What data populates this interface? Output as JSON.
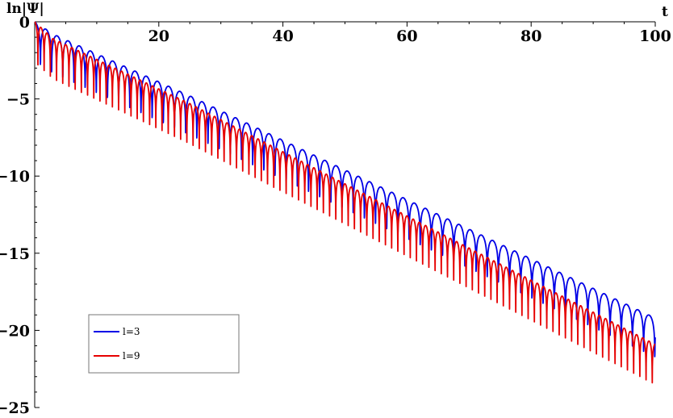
{
  "chart_data": {
    "type": "line",
    "xlabel": "t",
    "ylabel": "ln|Ψ|",
    "xlim": [
      0,
      100
    ],
    "ylim": [
      -25,
      0
    ],
    "x_ticks": [
      20,
      40,
      60,
      80,
      100
    ],
    "y_ticks": [
      0,
      -5,
      -10,
      -15,
      -20,
      -25
    ],
    "grid": false,
    "legend_position": "bottom-left",
    "series": [
      {
        "name": "l=3",
        "color": "#0000e6",
        "envelope_peaks": [
          [
            0.0,
            0.0
          ],
          [
            3.0,
            -0.8
          ],
          [
            25.0,
            -4.8
          ],
          [
            50.0,
            -9.6
          ],
          [
            75.0,
            -14.4
          ],
          [
            100.0,
            -19.2
          ]
        ],
        "sample_dips": [
          [
            6.0,
            -4.2
          ],
          [
            33.0,
            -12.1
          ],
          [
            79.9,
            -21.9
          ]
        ],
        "period": 1.8
      },
      {
        "name": "l=9",
        "color": "#e60000",
        "envelope_peaks": [
          [
            0.0,
            0.0
          ],
          [
            3.0,
            -1.1
          ],
          [
            25.0,
            -5.3
          ],
          [
            50.0,
            -10.5
          ],
          [
            75.0,
            -15.7
          ],
          [
            100.0,
            -20.9
          ]
        ],
        "sample_dips": [
          [
            7.6,
            -8.5
          ],
          [
            15.8,
            -9.6
          ],
          [
            38.8,
            -15.3
          ],
          [
            84.8,
            -23.6
          ],
          [
            99.0,
            -25.0
          ]
        ],
        "period": 1.0
      }
    ]
  }
}
